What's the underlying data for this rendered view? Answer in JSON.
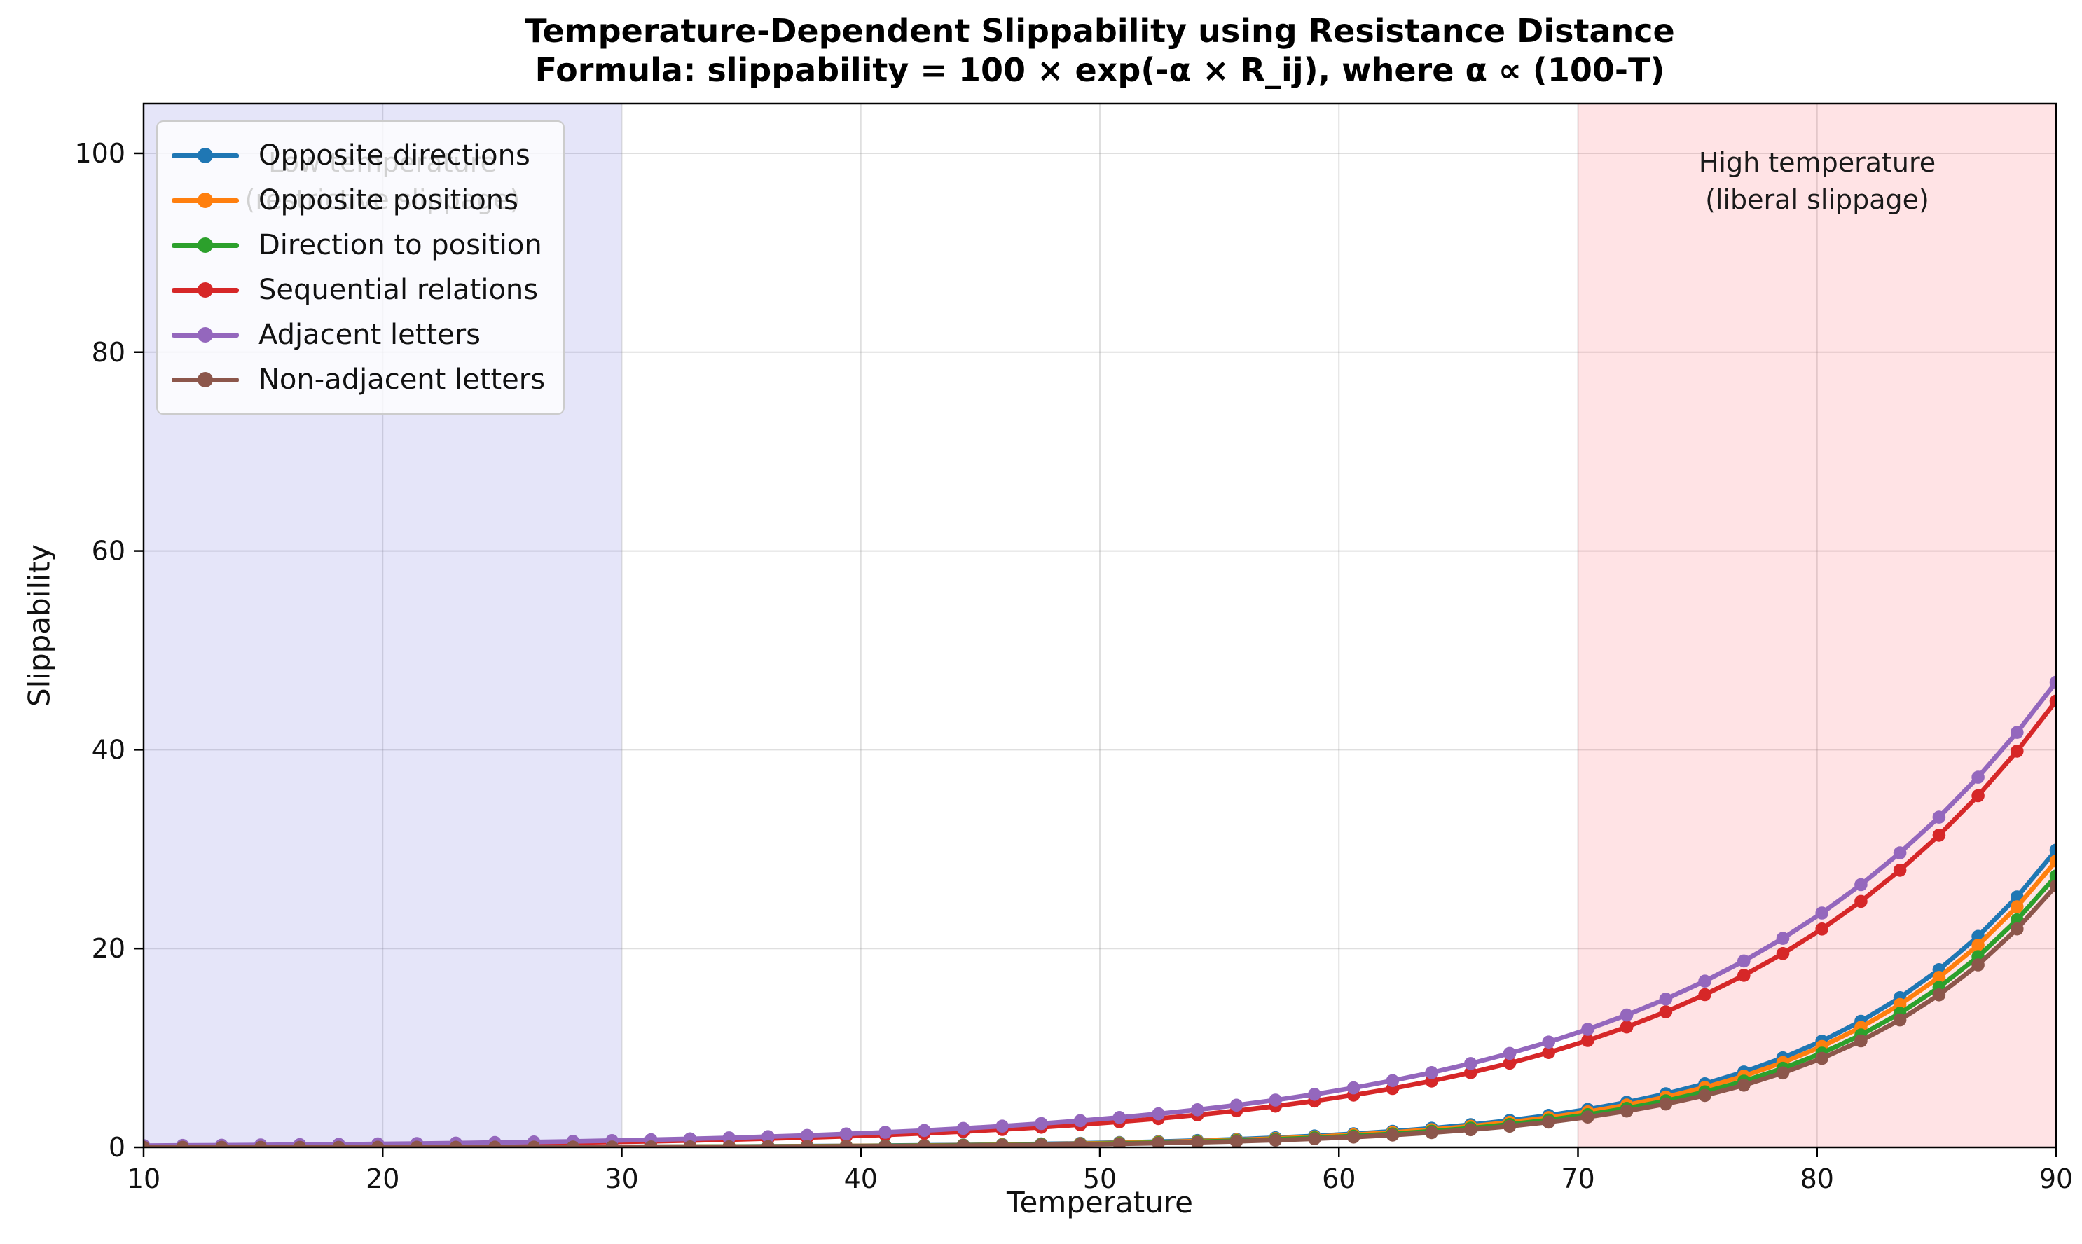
{
  "chart_data": {
    "type": "line",
    "title": "Temperature-Dependent Slippability using Resistance Distance",
    "subtitle": "Formula: slippability = 100 × exp(-α × R_ij), where α ∝ (100-T)",
    "xlabel": "Temperature",
    "ylabel": "Slippability",
    "xlim": [
      10,
      90
    ],
    "ylim": [
      0,
      105
    ],
    "x_ticks": [
      10,
      20,
      30,
      40,
      50,
      60,
      70,
      80,
      90
    ],
    "y_ticks": [
      0,
      20,
      40,
      60,
      80,
      100
    ],
    "grid": true,
    "legend_position": "upper left",
    "marker": "o",
    "marker_sampling": {
      "start": 10,
      "end": 90,
      "count": 50
    },
    "x": [
      10,
      15,
      20,
      25,
      30,
      35,
      40,
      45,
      50,
      55,
      60,
      65,
      70,
      75,
      80,
      85,
      90
    ],
    "series": [
      {
        "name": "Opposite directions",
        "color": "#1f77b4",
        "values": [
          0.0067,
          0.0114,
          0.0192,
          0.0325,
          0.0549,
          0.0928,
          0.1569,
          0.2652,
          0.4483,
          0.7579,
          1.281,
          2.166,
          3.661,
          6.189,
          10.46,
          17.69,
          29.9
        ]
      },
      {
        "name": "Opposite positions",
        "color": "#ff7f0e",
        "values": [
          0.0057,
          0.0098,
          0.0167,
          0.0284,
          0.0483,
          0.0823,
          0.1402,
          0.2388,
          0.4067,
          0.6927,
          1.18,
          2.009,
          3.422,
          5.829,
          9.928,
          16.91,
          28.8
        ]
      },
      {
        "name": "Direction to position",
        "color": "#2ca02c",
        "values": [
          0.0048,
          0.0083,
          0.0142,
          0.0244,
          0.0419,
          0.0719,
          0.1233,
          0.2116,
          0.3631,
          0.6231,
          1.069,
          1.835,
          3.148,
          5.403,
          9.271,
          15.91,
          27.3
        ]
      },
      {
        "name": "Sequential relations",
        "color": "#d62728",
        "values": [
          0.131,
          0.188,
          0.271,
          0.39,
          0.562,
          0.81,
          1.167,
          1.681,
          2.422,
          3.489,
          5.025,
          7.239,
          10.43,
          15.02,
          21.64,
          31.17,
          44.9
        ]
      },
      {
        "name": "Adjacent letters",
        "color": "#9467bd",
        "values": [
          0.173,
          0.246,
          0.348,
          0.494,
          0.702,
          0.996,
          1.413,
          2.005,
          2.845,
          4.038,
          5.73,
          8.132,
          11.54,
          16.37,
          23.24,
          32.98,
          46.8
        ]
      },
      {
        "name": "Non-adjacent letters",
        "color": "#8c564b",
        "values": [
          0.004,
          0.0069,
          0.0119,
          0.0206,
          0.0358,
          0.062,
          0.1075,
          0.1863,
          0.3229,
          0.5596,
          0.97,
          1.681,
          2.914,
          5.051,
          8.754,
          15.17,
          26.3
        ]
      }
    ],
    "regions": [
      {
        "name": "low-temperature-band",
        "from": 10,
        "to": 30,
        "color": "rgba(60,60,210,0.135)"
      },
      {
        "name": "high-temperature-band",
        "from": 70,
        "to": 90,
        "color": "rgba(255,30,50,0.125)"
      }
    ],
    "annotations": {
      "low": {
        "line1": "Low temperature",
        "line2": "(restrictive slippage)"
      },
      "high": {
        "line1": "High temperature",
        "line2": "(liberal slippage)"
      }
    }
  },
  "style": {
    "grid_color": "rgba(140,140,140,0.28)",
    "spine_color": "#000000",
    "tick_label_color": "#111111",
    "legend_border_color": "#cccccc"
  }
}
